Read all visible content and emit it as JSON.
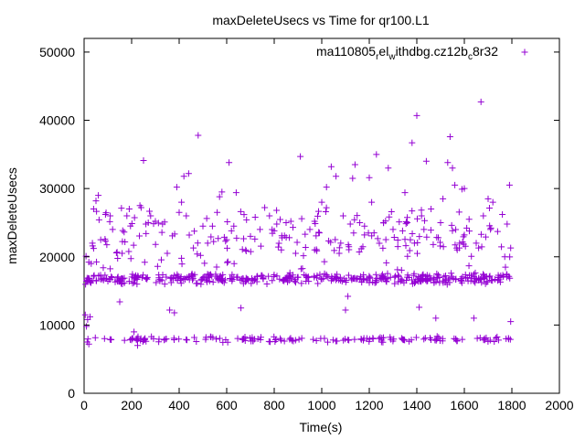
{
  "chart_data": {
    "type": "scatter",
    "title": "maxDeleteUsecs vs Time for qr100.L1",
    "xlabel": "Time(s)",
    "ylabel": "maxDeleteUsecs",
    "xlim": [
      0,
      2000
    ],
    "ylim": [
      0,
      52000
    ],
    "x_ticks": [
      "0",
      "200",
      "400",
      "600",
      "800",
      "1000",
      "1200",
      "1400",
      "1600",
      "1800",
      "2000"
    ],
    "y_ticks": [
      "0",
      "10000",
      "20000",
      "30000",
      "40000",
      "50000"
    ],
    "grid": false,
    "legend": "top-right",
    "marker": "plus",
    "color": "#9400d3",
    "series": [
      {
        "name": "ma110805_rel_withdbg.cz12b_c8r32",
        "legend_label_main": "ma110805",
        "legend_sub1": "r",
        "legend_mid1": "el",
        "legend_sub2": "w",
        "legend_mid2": "ithdbg.cz12b",
        "legend_sub3": "c",
        "legend_tail": "8r32",
        "bands": [
          {
            "x_start": 5,
            "x_end": 1795,
            "y_center": 16800,
            "spread": 900,
            "count": 420
          },
          {
            "x_start": 5,
            "x_end": 1795,
            "y_center": 7900,
            "spread": 500,
            "count": 160
          },
          {
            "x_start": 5,
            "x_end": 1795,
            "y_center": 22500,
            "spread": 5500,
            "count": 180
          }
        ],
        "points": [
          [
            5,
            11500
          ],
          [
            10,
            9800
          ],
          [
            15,
            10800
          ],
          [
            20,
            7200
          ],
          [
            25,
            11200
          ],
          [
            30,
            19000
          ],
          [
            35,
            22000
          ],
          [
            40,
            27000
          ],
          [
            50,
            28200
          ],
          [
            60,
            29000
          ],
          [
            70,
            22500
          ],
          [
            90,
            26200
          ],
          [
            110,
            26000
          ],
          [
            120,
            24000
          ],
          [
            140,
            16400
          ],
          [
            150,
            13400
          ],
          [
            160,
            20500
          ],
          [
            180,
            26000
          ],
          [
            190,
            27000
          ],
          [
            200,
            7800
          ],
          [
            210,
            9000
          ],
          [
            225,
            7000
          ],
          [
            235,
            27500
          ],
          [
            240,
            27200
          ],
          [
            250,
            34100
          ],
          [
            255,
            19200
          ],
          [
            260,
            24800
          ],
          [
            270,
            25000
          ],
          [
            280,
            26000
          ],
          [
            300,
            25200
          ],
          [
            330,
            24800
          ],
          [
            350,
            20500
          ],
          [
            360,
            12200
          ],
          [
            380,
            11800
          ],
          [
            390,
            30200
          ],
          [
            400,
            26500
          ],
          [
            410,
            28000
          ],
          [
            420,
            31800
          ],
          [
            430,
            26000
          ],
          [
            440,
            32200
          ],
          [
            460,
            21300
          ],
          [
            480,
            37800
          ],
          [
            490,
            20200
          ],
          [
            500,
            24500
          ],
          [
            520,
            22000
          ],
          [
            540,
            24500
          ],
          [
            560,
            26500
          ],
          [
            570,
            28800
          ],
          [
            580,
            29500
          ],
          [
            600,
            22500
          ],
          [
            610,
            33800
          ],
          [
            620,
            23800
          ],
          [
            630,
            24500
          ],
          [
            640,
            29400
          ],
          [
            660,
            12500
          ],
          [
            680,
            21000
          ],
          [
            700,
            23000
          ],
          [
            720,
            25800
          ],
          [
            740,
            24000
          ],
          [
            760,
            27200
          ],
          [
            780,
            26000
          ],
          [
            800,
            23800
          ],
          [
            810,
            26800
          ],
          [
            830,
            21000
          ],
          [
            850,
            25000
          ],
          [
            870,
            25200
          ],
          [
            890,
            20500
          ],
          [
            910,
            34700
          ],
          [
            930,
            23300
          ],
          [
            950,
            24000
          ],
          [
            970,
            21000
          ],
          [
            990,
            23500
          ],
          [
            1000,
            28000
          ],
          [
            1020,
            30200
          ],
          [
            1040,
            33200
          ],
          [
            1060,
            31800
          ],
          [
            1080,
            22000
          ],
          [
            1090,
            26000
          ],
          [
            1100,
            12200
          ],
          [
            1110,
            14200
          ],
          [
            1120,
            24800
          ],
          [
            1130,
            31500
          ],
          [
            1140,
            33500
          ],
          [
            1160,
            25000
          ],
          [
            1180,
            24500
          ],
          [
            1200,
            31600
          ],
          [
            1210,
            28000
          ],
          [
            1220,
            23500
          ],
          [
            1230,
            35000
          ],
          [
            1260,
            25000
          ],
          [
            1280,
            33000
          ],
          [
            1300,
            24000
          ],
          [
            1320,
            21500
          ],
          [
            1340,
            23800
          ],
          [
            1350,
            29400
          ],
          [
            1360,
            25000
          ],
          [
            1370,
            20900
          ],
          [
            1380,
            36700
          ],
          [
            1390,
            22000
          ],
          [
            1400,
            40700
          ],
          [
            1410,
            12600
          ],
          [
            1420,
            26000
          ],
          [
            1430,
            24000
          ],
          [
            1440,
            34000
          ],
          [
            1460,
            27000
          ],
          [
            1480,
            11000
          ],
          [
            1500,
            25000
          ],
          [
            1510,
            28500
          ],
          [
            1530,
            33800
          ],
          [
            1540,
            37600
          ],
          [
            1550,
            33000
          ],
          [
            1560,
            30500
          ],
          [
            1570,
            21000
          ],
          [
            1580,
            22000
          ],
          [
            1590,
            29900
          ],
          [
            1600,
            30000
          ],
          [
            1610,
            24200
          ],
          [
            1620,
            25500
          ],
          [
            1640,
            11000
          ],
          [
            1650,
            22000
          ],
          [
            1660,
            21300
          ],
          [
            1670,
            42700
          ],
          [
            1680,
            26000
          ],
          [
            1690,
            22900
          ],
          [
            1700,
            28500
          ],
          [
            1710,
            24000
          ],
          [
            1720,
            28000
          ],
          [
            1740,
            23700
          ],
          [
            1760,
            26200
          ],
          [
            1770,
            20000
          ],
          [
            1780,
            24800
          ],
          [
            1790,
            30500
          ],
          [
            1795,
            21300
          ],
          [
            1795,
            10500
          ]
        ]
      }
    ]
  }
}
